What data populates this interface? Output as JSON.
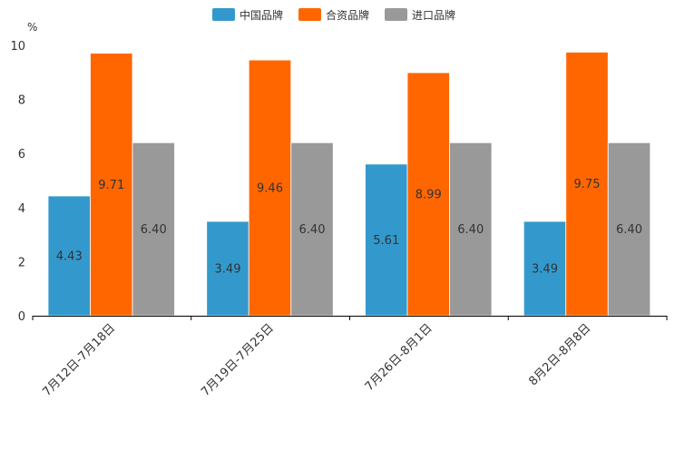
{
  "chart_data": {
    "type": "bar",
    "title": "",
    "ylabel": "%",
    "xlabel": "",
    "ylim": [
      0,
      10
    ],
    "yticks": [
      0,
      2,
      4,
      6,
      8,
      10
    ],
    "legend_position": "top-center",
    "categories": [
      "7月12日-7月18日",
      "7月19日-7月25日",
      "7月26日-8月1日",
      "8月2日-8月8日"
    ],
    "series": [
      {
        "name": "中国品牌",
        "color": "#3399cc",
        "values": [
          4.43,
          3.49,
          5.61,
          3.49
        ],
        "labels": [
          "4.43",
          "3.49",
          "5.61",
          "3.49"
        ]
      },
      {
        "name": "合资品牌",
        "color": "#ff6600",
        "values": [
          9.71,
          9.46,
          8.99,
          9.75
        ],
        "labels": [
          "9.71",
          "9.46",
          "8.99",
          "9.75"
        ]
      },
      {
        "name": "进口品牌",
        "color": "#999999",
        "values": [
          6.4,
          6.4,
          6.4,
          6.4
        ],
        "labels": [
          "6.40",
          "6.40",
          "6.40",
          "6.40"
        ]
      }
    ]
  }
}
